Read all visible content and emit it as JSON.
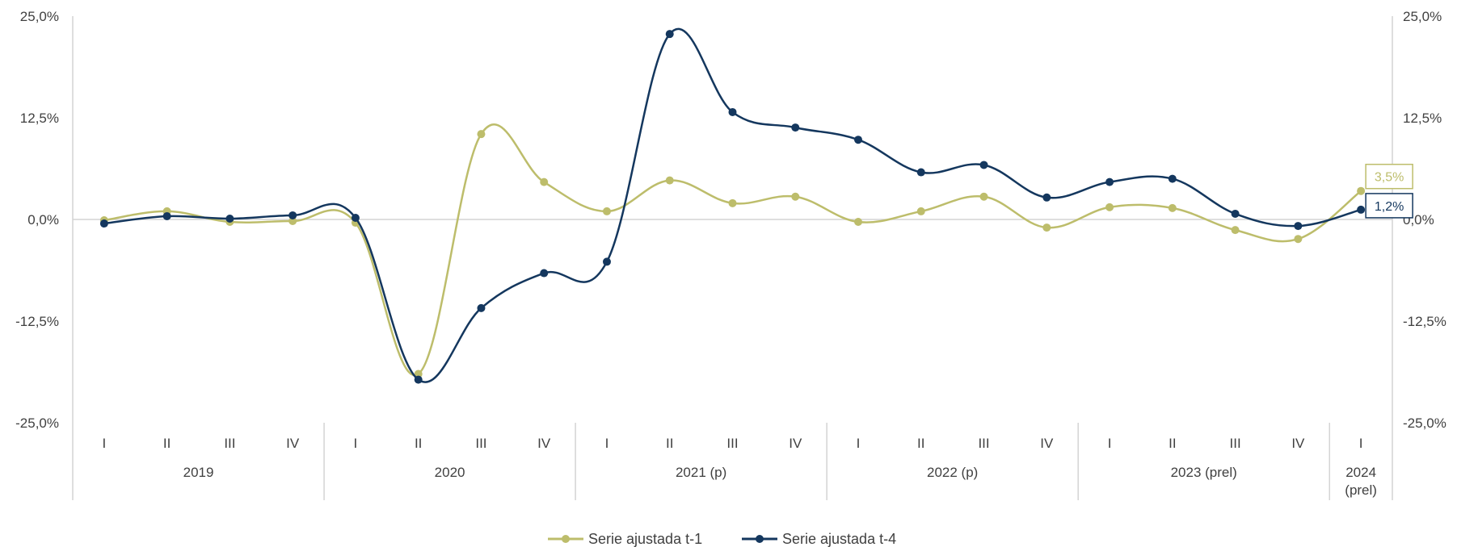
{
  "chart_data": {
    "type": "line",
    "quarters": [
      "I",
      "II",
      "III",
      "IV",
      "I",
      "II",
      "III",
      "IV",
      "I",
      "II",
      "III",
      "IV",
      "I",
      "II",
      "III",
      "IV",
      "I",
      "II",
      "III",
      "IV",
      "I"
    ],
    "years": [
      {
        "label": "2019",
        "span": 4
      },
      {
        "label": "2020",
        "span": 4
      },
      {
        "label": "2021 (p)",
        "span": 4
      },
      {
        "label": "2022 (p)",
        "span": 4
      },
      {
        "label": "2023 (prel)",
        "span": 4
      },
      {
        "label": "2024\n(prel)",
        "span": 1
      }
    ],
    "y_ticks_left": [
      "25,0%",
      "12,5%",
      "0,0%",
      "-12,5%",
      "-25,0%"
    ],
    "y_ticks_right": [
      "25,0%",
      "12,5%",
      "0,0%",
      "-12,5%",
      "-25,0%"
    ],
    "ylim": [
      -25,
      25
    ],
    "series": [
      {
        "name": "Serie ajustada t-1",
        "color": "#BDBD6B",
        "values": [
          -0.1,
          1.0,
          -0.3,
          -0.2,
          -0.4,
          -19.0,
          10.5,
          4.6,
          1.0,
          4.8,
          2.0,
          2.8,
          -0.3,
          1.0,
          2.8,
          -1.0,
          1.5,
          1.4,
          -1.3,
          -2.4,
          3.5
        ],
        "end_label": "3,5%"
      },
      {
        "name": "Serie ajustada t-4",
        "color": "#14375E",
        "values": [
          -0.5,
          0.4,
          0.1,
          0.5,
          0.2,
          -19.7,
          -10.9,
          -6.6,
          -5.2,
          22.8,
          13.2,
          11.3,
          9.8,
          5.8,
          6.7,
          2.7,
          4.6,
          5.0,
          0.7,
          -0.8,
          1.2
        ],
        "end_label": "1,2%"
      }
    ],
    "legend_position": "bottom",
    "grid": false
  }
}
